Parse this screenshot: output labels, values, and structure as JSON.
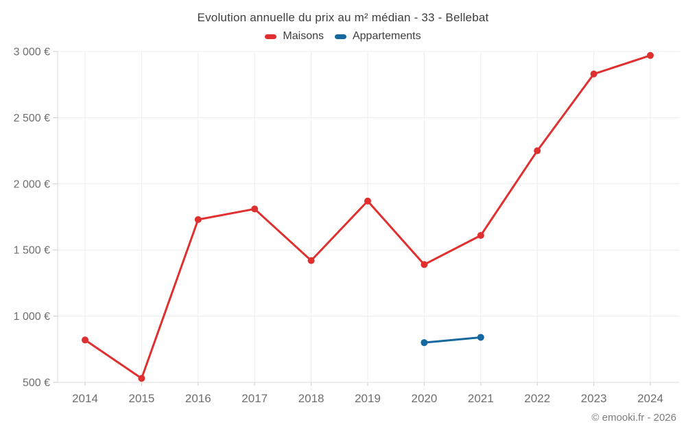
{
  "chart_data": {
    "type": "line",
    "title": "Evolution annuelle du prix au m² médian - 33 - Bellebat",
    "xlabel": "",
    "ylabel": "",
    "x": [
      2014,
      2015,
      2016,
      2017,
      2018,
      2019,
      2020,
      2021,
      2022,
      2023,
      2024
    ],
    "x_ticks": [
      "2014",
      "2015",
      "2016",
      "2017",
      "2018",
      "2019",
      "2020",
      "2021",
      "2022",
      "2023",
      "2024"
    ],
    "ylim": [
      500,
      3000
    ],
    "y_ticks": [
      {
        "value": 500,
        "label": "500 €"
      },
      {
        "value": 1000,
        "label": "1 000 €"
      },
      {
        "value": 1500,
        "label": "1 500 €"
      },
      {
        "value": 2000,
        "label": "2 000 €"
      },
      {
        "value": 2500,
        "label": "2 500 €"
      },
      {
        "value": 3000,
        "label": "3 000 €"
      }
    ],
    "grid": true,
    "legend_position": "top",
    "series": [
      {
        "name": "Maisons",
        "color": "#e02f2f",
        "points": [
          {
            "x": 2014,
            "y": 820
          },
          {
            "x": 2015,
            "y": 530
          },
          {
            "x": 2016,
            "y": 1730
          },
          {
            "x": 2017,
            "y": 1810
          },
          {
            "x": 2018,
            "y": 1420
          },
          {
            "x": 2019,
            "y": 1870
          },
          {
            "x": 2020,
            "y": 1390
          },
          {
            "x": 2021,
            "y": 1610
          },
          {
            "x": 2022,
            "y": 2250
          },
          {
            "x": 2023,
            "y": 2830
          },
          {
            "x": 2024,
            "y": 2970
          }
        ]
      },
      {
        "name": "Appartements",
        "color": "#1669a0",
        "points": [
          {
            "x": 2020,
            "y": 800
          },
          {
            "x": 2021,
            "y": 840
          }
        ]
      }
    ]
  },
  "footer": {
    "watermark": "© emooki.fr - 2026"
  },
  "colors": {
    "background": "#ffffff",
    "grid": "#ececec",
    "axis": "#d9d9d9",
    "tick": "#cfcfcf",
    "tick_label": "#6e6e6e",
    "title_text": "#3d3d3d",
    "watermark_text": "#7d7d7d"
  }
}
